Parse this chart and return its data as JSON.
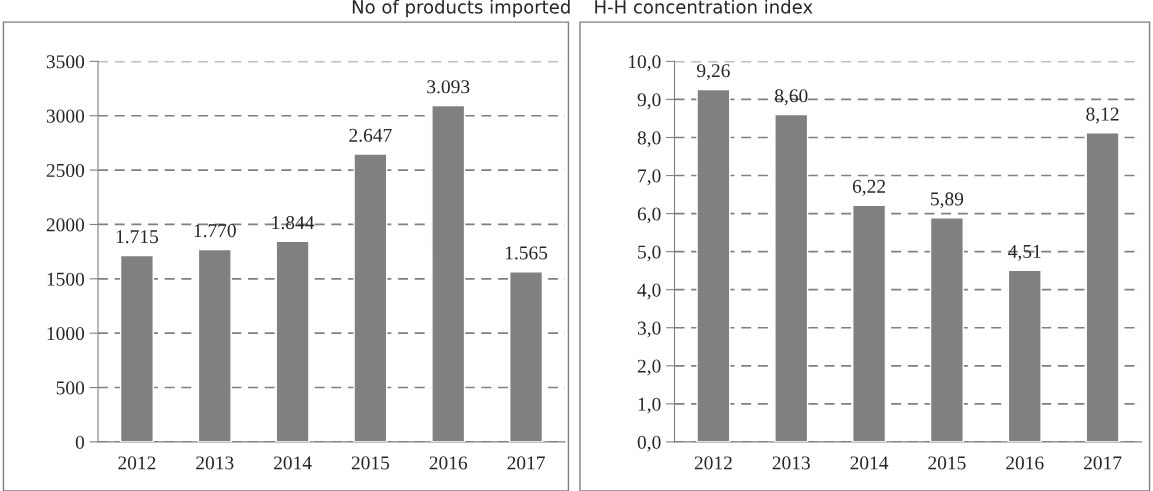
{
  "chart_data": [
    {
      "type": "bar",
      "title": "No of products imported",
      "categories": [
        "2012",
        "2013",
        "2014",
        "2015",
        "2016",
        "2017"
      ],
      "values": [
        1715,
        1770,
        1844,
        2647,
        3093,
        1565
      ],
      "value_labels": [
        "1.715",
        "1.770",
        "1.844",
        "2.647",
        "3.093",
        "1.565"
      ],
      "color": "#808080",
      "ylim": [
        0,
        3500
      ],
      "yticks": [
        0,
        500,
        1000,
        1500,
        2000,
        2500,
        3000,
        3500
      ],
      "grid": "y",
      "legend": false
    },
    {
      "type": "bar",
      "title": "H-H concentration index",
      "categories": [
        "2012",
        "2013",
        "2014",
        "2015",
        "2016",
        "2017"
      ],
      "values": [
        9.26,
        8.6,
        6.22,
        5.89,
        4.51,
        8.12
      ],
      "value_labels": [
        "9,26",
        "8,60",
        "6,22",
        "5,89",
        "4,51",
        "8,12"
      ],
      "color": "#808080",
      "ylim": [
        0,
        10
      ],
      "yticks": [
        {
          "value": 0,
          "label": "0,0"
        },
        {
          "value": 1,
          "label": "1,0"
        },
        {
          "value": 2,
          "label": "2,0"
        },
        {
          "value": 3,
          "label": "3,0"
        },
        {
          "value": 4,
          "label": "4,0"
        },
        {
          "value": 5,
          "label": "5,0"
        },
        {
          "value": 6,
          "label": "6,0"
        },
        {
          "value": 7,
          "label": "7,0"
        },
        {
          "value": 8,
          "label": "8,0"
        },
        {
          "value": 9,
          "label": "9,0"
        },
        {
          "value": 10,
          "label": "10,0"
        }
      ],
      "grid": "y",
      "legend": false
    }
  ]
}
